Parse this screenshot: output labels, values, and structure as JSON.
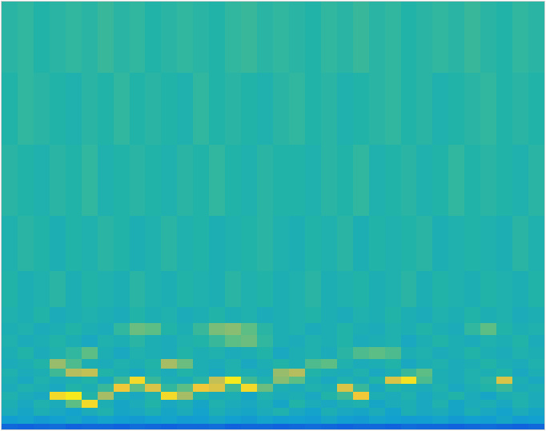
{
  "chart_data": {
    "type": "heatmap",
    "x": [
      0,
      20,
      40,
      60,
      80,
      100,
      120,
      140,
      160,
      180,
      200,
      220,
      240,
      260,
      280,
      300,
      320,
      340,
      360,
      380,
      400,
      420,
      440,
      460,
      480,
      500,
      520,
      540,
      560,
      580,
      600,
      620,
      640,
      660,
      680
    ],
    "y": [
      0,
      7,
      17,
      27,
      37,
      47,
      57,
      67,
      77,
      89,
      104,
      119,
      134,
      154,
      199,
      269,
      359,
      449,
      539
    ],
    "z": [
      [
        0.2,
        0.18,
        0.2,
        0.22,
        0.18,
        0.2,
        0.2,
        0.18,
        0.22,
        0.2,
        0.18,
        0.2,
        0.2,
        0.22,
        0.18,
        0.2,
        0.2,
        0.18,
        0.2,
        0.22,
        0.2,
        0.18,
        0.2,
        0.2,
        0.18,
        0.22,
        0.2,
        0.2,
        0.18,
        0.2,
        0.22,
        0.2,
        0.18,
        0.2
      ],
      [
        0.44,
        0.46,
        0.42,
        0.45,
        0.47,
        0.43,
        0.46,
        0.44,
        0.42,
        0.45,
        0.46,
        0.43,
        0.44,
        0.47,
        0.45,
        0.42,
        0.46,
        0.44,
        0.45,
        0.43,
        0.47,
        0.44,
        0.42,
        0.46,
        0.45,
        0.43,
        0.44,
        0.46,
        0.42,
        0.45,
        0.44,
        0.47,
        0.43,
        0.45
      ],
      [
        0.49,
        0.47,
        0.5,
        0.48,
        0.46,
        0.49,
        0.51,
        0.47,
        0.48,
        0.5,
        0.47,
        0.49,
        0.46,
        0.5,
        0.48,
        0.47,
        0.49,
        0.51,
        0.48,
        0.46,
        0.5,
        0.48,
        0.47,
        0.49,
        0.46,
        0.5,
        0.48,
        0.49,
        0.47,
        0.5,
        0.48,
        0.46,
        0.49,
        0.47
      ],
      [
        0.5,
        0.48,
        0.51,
        0.49,
        0.6,
        0.9,
        0.5,
        0.47,
        0.49,
        0.52,
        0.48,
        0.5,
        0.47,
        0.51,
        0.49,
        0.48,
        0.5,
        0.47,
        0.52,
        0.49,
        0.48,
        0.5,
        0.51,
        0.47,
        0.49,
        0.5,
        0.48,
        0.51,
        0.47,
        0.49,
        0.5,
        0.48,
        0.51,
        0.49
      ],
      [
        0.51,
        0.49,
        0.48,
        0.9,
        0.95,
        0.52,
        0.7,
        0.5,
        0.48,
        0.51,
        0.9,
        0.7,
        0.52,
        0.49,
        0.5,
        0.47,
        0.51,
        0.49,
        0.5,
        0.48,
        0.52,
        0.56,
        0.85,
        0.5,
        0.49,
        0.51,
        0.48,
        0.5,
        0.52,
        0.49,
        0.47,
        0.5,
        0.51,
        0.49
      ],
      [
        0.49,
        0.51,
        0.5,
        0.48,
        0.52,
        0.5,
        0.55,
        0.85,
        0.6,
        0.8,
        0.54,
        0.6,
        0.85,
        0.8,
        0.56,
        0.9,
        0.62,
        0.5,
        0.49,
        0.51,
        0.5,
        0.8,
        0.55,
        0.48,
        0.52,
        0.5,
        0.49,
        0.51,
        0.48,
        0.5,
        0.52,
        0.55,
        0.49,
        0.5
      ],
      [
        0.5,
        0.48,
        0.51,
        0.49,
        0.5,
        0.52,
        0.48,
        0.56,
        0.9,
        0.55,
        0.5,
        0.49,
        0.53,
        0.75,
        0.95,
        0.56,
        0.51,
        0.66,
        0.6,
        0.5,
        0.48,
        0.51,
        0.49,
        0.52,
        0.8,
        0.92,
        0.58,
        0.5,
        0.49,
        0.51,
        0.53,
        0.8,
        0.5,
        0.48
      ],
      [
        0.51,
        0.49,
        0.5,
        0.56,
        0.72,
        0.75,
        0.52,
        0.5,
        0.48,
        0.51,
        0.49,
        0.52,
        0.5,
        0.48,
        0.51,
        0.5,
        0.49,
        0.68,
        0.72,
        0.52,
        0.5,
        0.49,
        0.51,
        0.48,
        0.5,
        0.55,
        0.6,
        0.5,
        0.49,
        0.51,
        0.5,
        0.52,
        0.48,
        0.5
      ],
      [
        0.49,
        0.5,
        0.52,
        0.68,
        0.58,
        0.5,
        0.49,
        0.51,
        0.5,
        0.52,
        0.7,
        0.62,
        0.5,
        0.49,
        0.51,
        0.48,
        0.5,
        0.52,
        0.5,
        0.58,
        0.6,
        0.51,
        0.49,
        0.5,
        0.52,
        0.48,
        0.5,
        0.51,
        0.49,
        0.5,
        0.52,
        0.5,
        0.49,
        0.51
      ],
      [
        0.5,
        0.52,
        0.49,
        0.51,
        0.54,
        0.6,
        0.5,
        0.48,
        0.51,
        0.5,
        0.49,
        0.52,
        0.5,
        0.51,
        0.49,
        0.5,
        0.52,
        0.48,
        0.5,
        0.51,
        0.49,
        0.53,
        0.58,
        0.6,
        0.58,
        0.5,
        0.51,
        0.49,
        0.5,
        0.52,
        0.5,
        0.49,
        0.51,
        0.5
      ],
      [
        0.51,
        0.49,
        0.5,
        0.52,
        0.5,
        0.48,
        0.51,
        0.5,
        0.53,
        0.5,
        0.49,
        0.51,
        0.52,
        0.55,
        0.6,
        0.62,
        0.54,
        0.5,
        0.49,
        0.51,
        0.5,
        0.52,
        0.49,
        0.5,
        0.51,
        0.48,
        0.5,
        0.52,
        0.5,
        0.49,
        0.51,
        0.5,
        0.52,
        0.49
      ],
      [
        0.5,
        0.51,
        0.49,
        0.5,
        0.52,
        0.5,
        0.49,
        0.54,
        0.62,
        0.6,
        0.52,
        0.5,
        0.55,
        0.64,
        0.66,
        0.6,
        0.53,
        0.5,
        0.51,
        0.49,
        0.5,
        0.52,
        0.5,
        0.49,
        0.51,
        0.5,
        0.52,
        0.5,
        0.49,
        0.54,
        0.6,
        0.52,
        0.5,
        0.51
      ],
      [
        0.51,
        0.5,
        0.52,
        0.49,
        0.5,
        0.51,
        0.5,
        0.49,
        0.52,
        0.5,
        0.51,
        0.49,
        0.5,
        0.52,
        0.5,
        0.51,
        0.49,
        0.5,
        0.51,
        0.52,
        0.5,
        0.49,
        0.51,
        0.5,
        0.52,
        0.5,
        0.49,
        0.51,
        0.5,
        0.52,
        0.5,
        0.51,
        0.49,
        0.5
      ],
      [
        0.52,
        0.5,
        0.51,
        0.53,
        0.5,
        0.52,
        0.51,
        0.5,
        0.53,
        0.51,
        0.5,
        0.52,
        0.51,
        0.5,
        0.53,
        0.51,
        0.52,
        0.5,
        0.51,
        0.53,
        0.5,
        0.51,
        0.52,
        0.5,
        0.51,
        0.53,
        0.5,
        0.52,
        0.51,
        0.5,
        0.52,
        0.51,
        0.5,
        0.52
      ],
      [
        0.51,
        0.53,
        0.52,
        0.5,
        0.52,
        0.51,
        0.53,
        0.52,
        0.5,
        0.51,
        0.53,
        0.51,
        0.52,
        0.5,
        0.51,
        0.52,
        0.53,
        0.51,
        0.5,
        0.52,
        0.51,
        0.53,
        0.5,
        0.52,
        0.51,
        0.52,
        0.53,
        0.5,
        0.51,
        0.52,
        0.51,
        0.5,
        0.53,
        0.51
      ],
      [
        0.53,
        0.52,
        0.51,
        0.53,
        0.52,
        0.54,
        0.51,
        0.52,
        0.53,
        0.52,
        0.51,
        0.53,
        0.52,
        0.54,
        0.52,
        0.51,
        0.53,
        0.52,
        0.52,
        0.51,
        0.53,
        0.52,
        0.54,
        0.51,
        0.52,
        0.53,
        0.51,
        0.52,
        0.54,
        0.52,
        0.53,
        0.52,
        0.51,
        0.53
      ],
      [
        0.52,
        0.54,
        0.53,
        0.52,
        0.51,
        0.53,
        0.52,
        0.54,
        0.52,
        0.53,
        0.52,
        0.51,
        0.54,
        0.52,
        0.53,
        0.52,
        0.51,
        0.53,
        0.54,
        0.52,
        0.53,
        0.51,
        0.52,
        0.53,
        0.54,
        0.52,
        0.53,
        0.51,
        0.52,
        0.53,
        0.54,
        0.52,
        0.53,
        0.52
      ],
      [
        0.53,
        0.54,
        0.52,
        0.53,
        0.54,
        0.53,
        0.55,
        0.53,
        0.54,
        0.52,
        0.53,
        0.54,
        0.53,
        0.52,
        0.54,
        0.55,
        0.53,
        0.54,
        0.53,
        0.52,
        0.54,
        0.53,
        0.55,
        0.53,
        0.54,
        0.52,
        0.53,
        0.54,
        0.53,
        0.55,
        0.53,
        0.52,
        0.54,
        0.53
      ]
    ],
    "zlim": [
      0,
      1
    ],
    "xlim": [
      0,
      680
    ],
    "ylim": [
      0,
      539
    ],
    "tick_labels": false
  }
}
